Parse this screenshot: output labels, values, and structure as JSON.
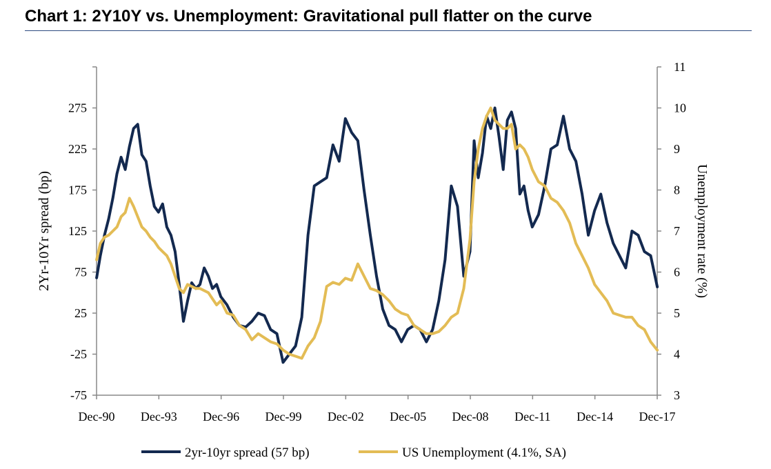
{
  "title": "Chart 1: 2Y10Y vs. Unemployment: Gravitational pull flatter on the curve",
  "chart_data": {
    "type": "line",
    "title": "Chart 1: 2Y10Y vs. Unemployment: Gravitational pull flatter on the curve",
    "xlabel": "",
    "x_tick_labels": [
      "Dec-90",
      "Dec-93",
      "Dec-96",
      "Dec-99",
      "Dec-02",
      "Dec-05",
      "Dec-08",
      "Dec-11",
      "Dec-14",
      "Dec-17"
    ],
    "x_range": [
      1990.917,
      2017.917
    ],
    "y_left": {
      "label": "2Yr-10Yr spread (bp)",
      "ylim": [
        -75,
        325
      ],
      "ticks": [
        -75,
        -25,
        25,
        75,
        125,
        175,
        225,
        275
      ]
    },
    "y_right": {
      "label": "Unemployment rate (%)",
      "ylim": [
        3,
        11
      ],
      "ticks": [
        3,
        4,
        5,
        6,
        7,
        8,
        9,
        10,
        11
      ]
    },
    "grid": false,
    "legend_position": "bottom",
    "colors": {
      "spread": "#13294f",
      "unemployment": "#e3bc55"
    },
    "series": [
      {
        "name": "2yr-10yr spread (57 bp)",
        "axis": "left",
        "x": [
          1990.92,
          1991.1,
          1991.3,
          1991.5,
          1991.7,
          1991.9,
          1992.1,
          1992.3,
          1992.5,
          1992.7,
          1992.9,
          1993.1,
          1993.3,
          1993.5,
          1993.7,
          1993.9,
          1994.1,
          1994.3,
          1994.5,
          1994.7,
          1994.9,
          1995.1,
          1995.3,
          1995.5,
          1995.7,
          1995.9,
          1996.1,
          1996.3,
          1996.5,
          1996.7,
          1996.9,
          1997.2,
          1997.5,
          1997.8,
          1998.1,
          1998.4,
          1998.7,
          1999.0,
          1999.3,
          1999.6,
          1999.9,
          2000.2,
          2000.5,
          2000.8,
          2001.1,
          2001.4,
          2001.7,
          2002.0,
          2002.3,
          2002.6,
          2002.9,
          2003.2,
          2003.5,
          2003.8,
          2004.1,
          2004.4,
          2004.7,
          2005.0,
          2005.3,
          2005.6,
          2005.9,
          2006.2,
          2006.5,
          2006.8,
          2007.1,
          2007.4,
          2007.7,
          2008.0,
          2008.3,
          2008.6,
          2008.9,
          2009.1,
          2009.3,
          2009.5,
          2009.7,
          2009.9,
          2010.1,
          2010.3,
          2010.5,
          2010.7,
          2010.9,
          2011.1,
          2011.3,
          2011.5,
          2011.7,
          2011.9,
          2012.2,
          2012.5,
          2012.8,
          2013.1,
          2013.4,
          2013.7,
          2014.0,
          2014.3,
          2014.6,
          2014.9,
          2015.2,
          2015.5,
          2015.8,
          2016.1,
          2016.4,
          2016.7,
          2017.0,
          2017.3,
          2017.6,
          2017.92
        ],
        "values": [
          68,
          95,
          120,
          140,
          165,
          195,
          215,
          200,
          228,
          250,
          255,
          218,
          210,
          180,
          155,
          148,
          158,
          130,
          120,
          100,
          60,
          15,
          40,
          62,
          55,
          60,
          80,
          70,
          55,
          60,
          45,
          35,
          20,
          10,
          8,
          15,
          25,
          22,
          5,
          0,
          -35,
          -25,
          -15,
          20,
          120,
          180,
          185,
          190,
          230,
          210,
          262,
          245,
          235,
          175,
          120,
          70,
          30,
          10,
          5,
          -10,
          5,
          10,
          5,
          -10,
          5,
          40,
          90,
          180,
          155,
          70,
          100,
          235,
          190,
          220,
          265,
          250,
          275,
          240,
          200,
          260,
          270,
          250,
          170,
          180,
          150,
          130,
          145,
          180,
          225,
          230,
          265,
          225,
          210,
          170,
          120,
          150,
          170,
          135,
          110,
          95,
          80,
          125,
          120,
          100,
          95,
          57
        ]
      },
      {
        "name": "US Unemployment (4.1%, SA)",
        "axis": "right",
        "x": [
          1990.92,
          1991.1,
          1991.3,
          1991.5,
          1991.7,
          1991.9,
          1992.1,
          1992.3,
          1992.5,
          1992.7,
          1992.9,
          1993.1,
          1993.3,
          1993.5,
          1993.7,
          1993.9,
          1994.1,
          1994.3,
          1994.5,
          1994.7,
          1994.9,
          1995.1,
          1995.3,
          1995.5,
          1995.7,
          1995.9,
          1996.1,
          1996.3,
          1996.5,
          1996.7,
          1996.9,
          1997.2,
          1997.5,
          1997.8,
          1998.1,
          1998.4,
          1998.7,
          1999.0,
          1999.3,
          1999.6,
          1999.9,
          2000.2,
          2000.5,
          2000.8,
          2001.1,
          2001.4,
          2001.7,
          2002.0,
          2002.3,
          2002.6,
          2002.9,
          2003.2,
          2003.5,
          2003.8,
          2004.1,
          2004.4,
          2004.7,
          2005.0,
          2005.3,
          2005.6,
          2005.9,
          2006.2,
          2006.5,
          2006.8,
          2007.1,
          2007.4,
          2007.7,
          2008.0,
          2008.3,
          2008.6,
          2008.9,
          2009.1,
          2009.3,
          2009.5,
          2009.7,
          2009.9,
          2010.1,
          2010.3,
          2010.5,
          2010.7,
          2010.9,
          2011.1,
          2011.3,
          2011.5,
          2011.7,
          2011.9,
          2012.2,
          2012.5,
          2012.8,
          2013.1,
          2013.4,
          2013.7,
          2014.0,
          2014.3,
          2014.6,
          2014.9,
          2015.2,
          2015.5,
          2015.8,
          2016.1,
          2016.4,
          2016.7,
          2017.0,
          2017.3,
          2017.6,
          2017.92
        ],
        "values": [
          6.3,
          6.7,
          6.85,
          6.9,
          7.0,
          7.1,
          7.35,
          7.45,
          7.8,
          7.6,
          7.35,
          7.1,
          7.0,
          6.85,
          6.75,
          6.6,
          6.5,
          6.4,
          6.2,
          5.9,
          5.6,
          5.5,
          5.7,
          5.65,
          5.6,
          5.6,
          5.55,
          5.5,
          5.35,
          5.2,
          5.3,
          5.0,
          4.95,
          4.7,
          4.6,
          4.35,
          4.5,
          4.4,
          4.3,
          4.25,
          4.1,
          4.0,
          3.95,
          3.9,
          4.2,
          4.4,
          4.8,
          5.65,
          5.75,
          5.7,
          5.85,
          5.8,
          6.2,
          5.9,
          5.6,
          5.55,
          5.45,
          5.3,
          5.1,
          5.0,
          4.95,
          4.7,
          4.6,
          4.5,
          4.5,
          4.55,
          4.7,
          4.9,
          5.0,
          5.6,
          6.8,
          8.2,
          9.0,
          9.5,
          9.8,
          10.0,
          9.7,
          9.6,
          9.5,
          9.5,
          9.6,
          9.0,
          9.1,
          9.0,
          8.8,
          8.5,
          8.2,
          8.1,
          7.8,
          7.7,
          7.5,
          7.2,
          6.7,
          6.4,
          6.1,
          5.7,
          5.5,
          5.3,
          5.0,
          4.95,
          4.9,
          4.9,
          4.7,
          4.6,
          4.3,
          4.1
        ]
      }
    ]
  }
}
